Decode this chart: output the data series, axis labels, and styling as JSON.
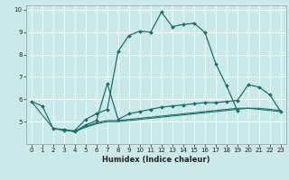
{
  "xlabel": "Humidex (Indice chaleur)",
  "bg_color": "#cce9ea",
  "line_color": "#1a6e6a",
  "grid_color": "#ffffff",
  "xlim": [
    -0.5,
    23.5
  ],
  "ylim": [
    4.0,
    10.2
  ],
  "yticks": [
    5,
    6,
    7,
    8,
    9,
    10
  ],
  "xtick_labels": [
    "0",
    "1",
    "2",
    "3",
    "4",
    "5",
    "6",
    "7",
    "8",
    "9",
    "10",
    "11",
    "12",
    "13",
    "14",
    "15",
    "16",
    "17",
    "18",
    "19",
    "20",
    "21",
    "22",
    "23"
  ],
  "series": [
    {
      "x": [
        0,
        1,
        2,
        3,
        4,
        5,
        6,
        7,
        8,
        9,
        10,
        11,
        12,
        13,
        14,
        15,
        16,
        17,
        18,
        19
      ],
      "y": [
        5.9,
        5.7,
        4.7,
        4.6,
        4.6,
        5.1,
        5.35,
        5.55,
        8.15,
        8.85,
        9.05,
        9.0,
        9.9,
        9.25,
        9.35,
        9.4,
        9.0,
        7.6,
        6.6,
        5.5
      ],
      "marker": true
    },
    {
      "x": [
        3,
        4,
        5,
        6,
        7,
        8,
        9,
        10,
        11,
        12,
        13,
        14,
        15,
        16,
        17,
        18,
        19,
        20,
        21,
        22,
        23
      ],
      "y": [
        4.65,
        4.55,
        4.85,
        5.05,
        6.7,
        5.1,
        5.35,
        5.45,
        5.55,
        5.65,
        5.7,
        5.75,
        5.8,
        5.85,
        5.85,
        5.9,
        5.95,
        6.65,
        6.55,
        6.2,
        5.45
      ],
      "marker": true
    },
    {
      "x": [
        3,
        4,
        5,
        6,
        7,
        8,
        9,
        10,
        11,
        12,
        13,
        14,
        15,
        16,
        17,
        18,
        19,
        20,
        21,
        22,
        23
      ],
      "y": [
        4.65,
        4.55,
        4.8,
        4.95,
        5.05,
        5.05,
        5.1,
        5.15,
        5.2,
        5.25,
        5.3,
        5.35,
        5.4,
        5.45,
        5.5,
        5.55,
        5.6,
        5.6,
        5.55,
        5.5,
        5.45
      ],
      "marker": false
    },
    {
      "x": [
        0,
        2,
        3,
        4,
        5,
        6,
        7,
        8,
        9,
        10,
        11,
        12,
        13,
        14,
        15,
        16,
        17,
        18,
        19,
        20,
        21,
        22,
        23
      ],
      "y": [
        5.9,
        4.7,
        4.65,
        4.55,
        4.75,
        4.9,
        5.0,
        5.0,
        5.05,
        5.1,
        5.15,
        5.2,
        5.25,
        5.3,
        5.35,
        5.4,
        5.45,
        5.5,
        5.55,
        5.6,
        5.6,
        5.55,
        5.5
      ],
      "marker": false
    }
  ]
}
